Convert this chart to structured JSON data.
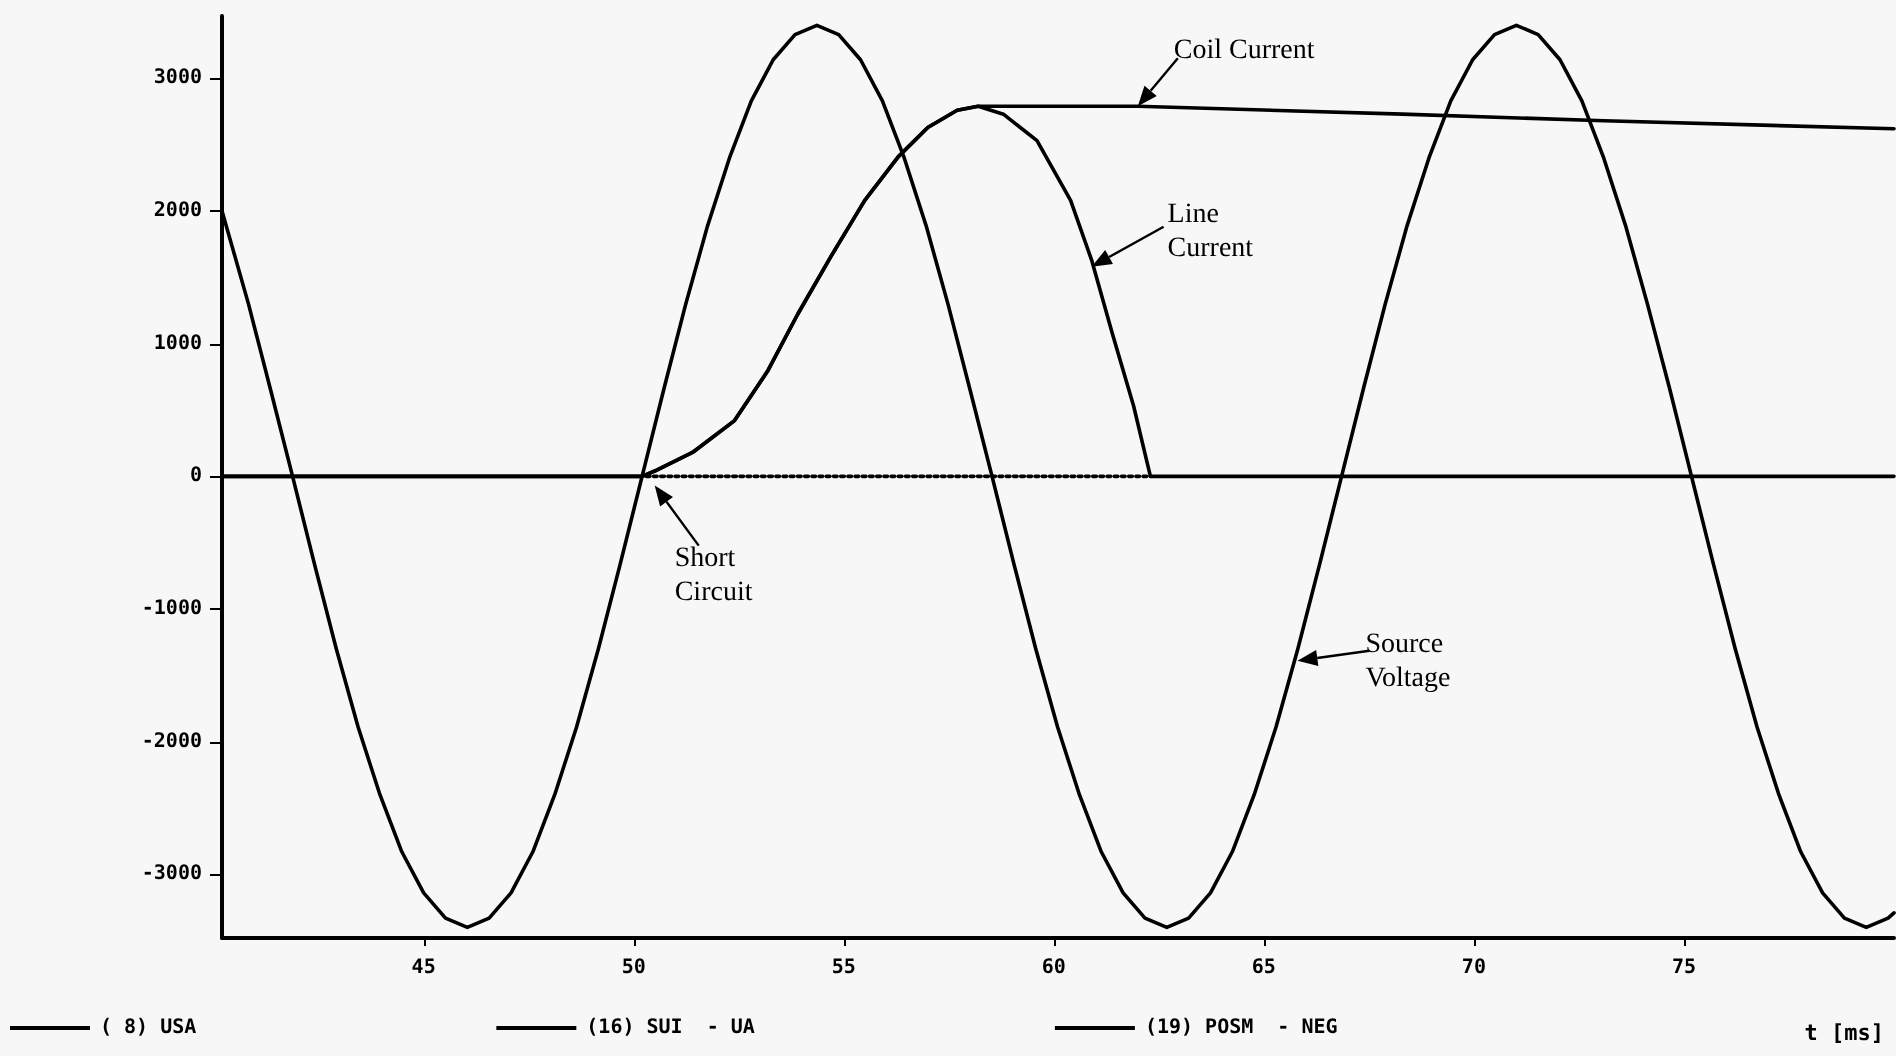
{
  "chart_data": {
    "type": "line",
    "xlabel": "t [ms]",
    "xlim": [
      40.2,
      80
    ],
    "xticks": [
      45,
      50,
      55,
      60,
      65,
      70,
      75
    ],
    "ylim": [
      -3480,
      3470
    ],
    "yticks": [
      -3000,
      -2000,
      -1000,
      0,
      1000,
      2000,
      3000
    ],
    "grid": false,
    "legend": "bottom",
    "marker": "none",
    "series": [
      {
        "name": "( 8) USA",
        "color": "#000000",
        "line_style": "solid",
        "x": [
          40.2,
          40.83,
          41.35,
          41.88,
          42.4,
          42.92,
          43.44,
          43.96,
          44.48,
          45.0,
          45.52,
          46.04,
          46.56,
          47.08,
          47.6,
          48.12,
          48.64,
          49.16,
          49.68,
          50.2,
          50.72,
          51.24,
          51.76,
          52.28,
          52.8,
          53.32,
          53.84,
          54.36,
          54.88,
          55.4,
          55.92,
          56.44,
          56.96,
          57.48,
          58.0,
          58.53,
          59.05,
          59.57,
          60.09,
          60.61,
          61.13,
          61.65,
          62.17,
          62.69,
          63.21,
          63.73,
          64.25,
          64.77,
          65.29,
          65.81,
          66.33,
          66.85,
          67.37,
          67.89,
          68.41,
          68.93,
          69.45,
          69.97,
          70.49,
          71.01,
          71.53,
          72.05,
          72.57,
          73.09,
          73.61,
          74.13,
          74.66,
          75.18,
          75.7,
          76.22,
          76.74,
          77.26,
          77.78,
          78.3,
          78.82,
          79.34,
          79.86,
          80.0
        ],
        "values": [
          2000,
          1300,
          660,
          0,
          -660,
          -1300,
          -1890,
          -2400,
          -2830,
          -3140,
          -3330,
          -3400,
          -3330,
          -3140,
          -2830,
          -2400,
          -1890,
          -1300,
          -660,
          0,
          660,
          1300,
          1890,
          2400,
          2830,
          3140,
          3330,
          3400,
          3330,
          3140,
          2830,
          2400,
          1890,
          1300,
          660,
          0,
          -660,
          -1300,
          -1890,
          -2400,
          -2830,
          -3140,
          -3330,
          -3400,
          -3330,
          -3140,
          -2830,
          -2400,
          -1890,
          -1300,
          -660,
          0,
          660,
          1300,
          1890,
          2400,
          2830,
          3140,
          3330,
          3400,
          3330,
          3140,
          2830,
          2400,
          1890,
          1300,
          660,
          0,
          -660,
          -1300,
          -1890,
          -2400,
          -2830,
          -3140,
          -3330,
          -3400,
          -3330,
          -3290
        ]
      },
      {
        "name": "(16) SUI  - UA",
        "color": "#000000",
        "line_style": "solid",
        "x": [
          40.2,
          50.2,
          50.5,
          51.4,
          52.4,
          53.2,
          53.9,
          54.7,
          55.5,
          56.3,
          57.0,
          57.7,
          58.2,
          58.8,
          59.6,
          60.4,
          60.9,
          61.4,
          61.9,
          62.3,
          80.0
        ],
        "values": [
          0,
          0,
          40,
          180,
          420,
          800,
          1220,
          1660,
          2080,
          2410,
          2630,
          2760,
          2790,
          2730,
          2530,
          2080,
          1630,
          1070,
          530,
          0,
          0
        ]
      },
      {
        "name": "(19) POSM  - NEG",
        "color": "#000000",
        "line_style": "solid",
        "x": [
          40.2,
          50.2,
          50.5,
          51.4,
          52.4,
          53.2,
          53.9,
          54.7,
          55.5,
          56.3,
          57.0,
          57.7,
          58.2,
          62.0,
          68.3,
          73.1,
          80.0
        ],
        "values": [
          0,
          0,
          40,
          180,
          420,
          800,
          1220,
          1660,
          2080,
          2410,
          2630,
          2760,
          2790,
          2790,
          2730,
          2680,
          2620
        ]
      },
      {
        "color": "#000000",
        "line_style": "dotted",
        "x": [
          50.3,
          62.3
        ],
        "values": [
          0,
          0
        ]
      }
    ],
    "annotations": [
      {
        "text": "Coil Current",
        "x": 62.0,
        "y": 2790
      },
      {
        "text": "Line\nCurrent",
        "x": 60.9,
        "y": 1580
      },
      {
        "text": "Short\nCircuit",
        "x": 50.5,
        "y": -70
      },
      {
        "text": "Source\nVoltage",
        "x": 65.8,
        "y": -1390
      }
    ]
  }
}
